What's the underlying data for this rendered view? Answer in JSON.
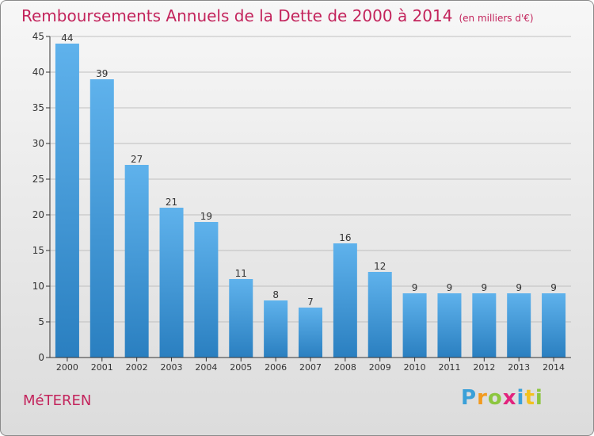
{
  "header": {
    "title": "Remboursements Annuels de la Dette de 2000 à 2014",
    "unit": "(en milliers d'€)"
  },
  "footer": {
    "town": "MéTEREN",
    "logo_letters": [
      "P",
      "r",
      "o",
      "x",
      "i",
      "t",
      "i"
    ],
    "logo_colors": [
      "#3aa0d8",
      "#f29a1e",
      "#8cc63f",
      "#e2237d",
      "#3aa0d8",
      "#f2c11e",
      "#8cc63f"
    ]
  },
  "colors": {
    "title": "#c3245c",
    "bar_top": "#5fb2ec",
    "bar_bottom": "#2a7fc0",
    "axis": "#333333",
    "grid": "#bfbfbf"
  },
  "chart_data": {
    "type": "bar",
    "title": "Remboursements Annuels de la Dette de 2000 à 2014",
    "xlabel": "",
    "ylabel": "",
    "categories": [
      "2000",
      "2001",
      "2002",
      "2003",
      "2004",
      "2005",
      "2006",
      "2007",
      "2008",
      "2009",
      "2010",
      "2011",
      "2012",
      "2013",
      "2014"
    ],
    "values": [
      44,
      39,
      27,
      21,
      19,
      11,
      8,
      7,
      16,
      12,
      9,
      9,
      9,
      9,
      9
    ],
    "ylim": [
      0,
      45
    ],
    "yticks": [
      0,
      5,
      10,
      15,
      20,
      25,
      30,
      35,
      40,
      45
    ],
    "grid": "horizontal",
    "data_labels": true
  }
}
